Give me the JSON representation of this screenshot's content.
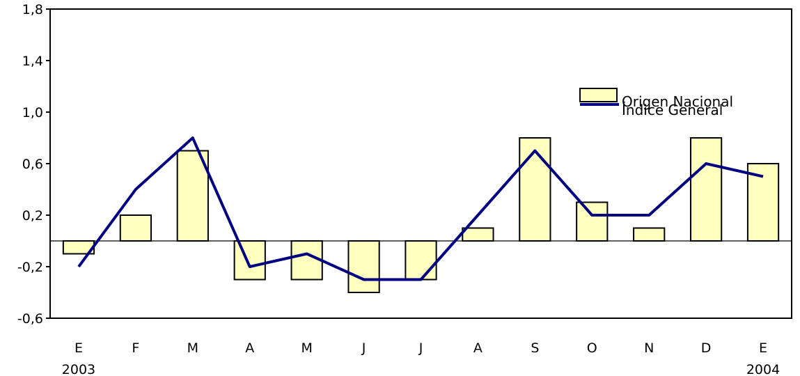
{
  "chart_data": {
    "type": "bar",
    "categories": [
      "E",
      "F",
      "M",
      "A",
      "M",
      "J",
      "J",
      "A",
      "S",
      "O",
      "N",
      "D",
      "E"
    ],
    "year_labels": {
      "first": "2003",
      "last": "2004"
    },
    "series": [
      {
        "name": "Origen Nacional",
        "type": "bar",
        "values": [
          -0.1,
          0.2,
          0.7,
          -0.3,
          -0.3,
          -0.4,
          -0.3,
          0.1,
          0.8,
          0.3,
          0.1,
          0.8,
          0.6
        ]
      },
      {
        "name": "Índice General",
        "type": "line",
        "values": [
          -0.2,
          0.4,
          0.8,
          -0.2,
          -0.1,
          -0.3,
          -0.3,
          0.2,
          0.7,
          0.2,
          0.2,
          0.6,
          0.5
        ]
      }
    ],
    "ylim": [
      -0.6,
      1.8
    ],
    "yticks": [
      -0.6,
      -0.2,
      0.2,
      0.6,
      1.0,
      1.4,
      1.8
    ],
    "ytick_labels": [
      "-0,6",
      "-0,2",
      "0,2",
      "0,6",
      "1,0",
      "1,4",
      "1,8"
    ],
    "grid": false,
    "legend_position": "top-right",
    "colors": {
      "bar_fill": "#ffffc0",
      "bar_stroke": "#000000",
      "line": "#000080",
      "axis": "#000000"
    }
  }
}
